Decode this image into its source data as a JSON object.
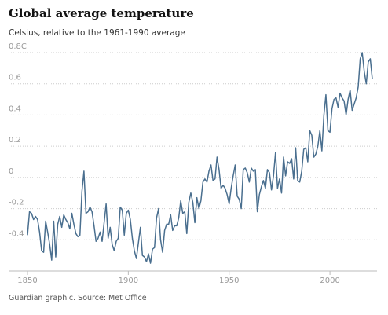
{
  "chart_data": {
    "type": "line",
    "title": "Global average temperature",
    "subtitle": "Celsius, relative to the 1961-1990 average",
    "source": "Guardian graphic. Source: Met Office",
    "x": [
      1850,
      1851,
      1852,
      1853,
      1854,
      1855,
      1856,
      1857,
      1858,
      1859,
      1860,
      1861,
      1862,
      1863,
      1864,
      1865,
      1866,
      1867,
      1868,
      1869,
      1870,
      1871,
      1872,
      1873,
      1874,
      1875,
      1876,
      1877,
      1878,
      1879,
      1880,
      1881,
      1882,
      1883,
      1884,
      1885,
      1886,
      1887,
      1888,
      1889,
      1890,
      1891,
      1892,
      1893,
      1894,
      1895,
      1896,
      1897,
      1898,
      1899,
      1900,
      1901,
      1902,
      1903,
      1904,
      1905,
      1906,
      1907,
      1908,
      1909,
      1910,
      1911,
      1912,
      1913,
      1914,
      1915,
      1916,
      1917,
      1918,
      1919,
      1920,
      1921,
      1922,
      1923,
      1924,
      1925,
      1926,
      1927,
      1928,
      1929,
      1930,
      1931,
      1932,
      1933,
      1934,
      1935,
      1936,
      1937,
      1938,
      1939,
      1940,
      1941,
      1942,
      1943,
      1944,
      1945,
      1946,
      1947,
      1948,
      1949,
      1950,
      1951,
      1952,
      1953,
      1954,
      1955,
      1956,
      1957,
      1958,
      1959,
      1960,
      1961,
      1962,
      1963,
      1964,
      1965,
      1966,
      1967,
      1968,
      1969,
      1970,
      1971,
      1972,
      1973,
      1974,
      1975,
      1976,
      1977,
      1978,
      1979,
      1980,
      1981,
      1982,
      1983,
      1984,
      1985,
      1986,
      1987,
      1988,
      1989,
      1990,
      1991,
      1992,
      1993,
      1994,
      1995,
      1996,
      1997,
      1998,
      1999,
      2000,
      2001,
      2002,
      2003,
      2004,
      2005,
      2006,
      2007,
      2008,
      2009,
      2010,
      2011,
      2012,
      2013,
      2014,
      2015,
      2016,
      2017,
      2018,
      2019,
      2020,
      2021
    ],
    "series": [
      {
        "color": "#4a6f8f",
        "values": [
          -0.37,
          -0.22,
          -0.23,
          -0.27,
          -0.25,
          -0.27,
          -0.35,
          -0.47,
          -0.48,
          -0.28,
          -0.35,
          -0.43,
          -0.53,
          -0.28,
          -0.51,
          -0.3,
          -0.25,
          -0.32,
          -0.24,
          -0.27,
          -0.29,
          -0.33,
          -0.23,
          -0.3,
          -0.36,
          -0.38,
          -0.37,
          -0.09,
          0.04,
          -0.23,
          -0.22,
          -0.19,
          -0.22,
          -0.31,
          -0.41,
          -0.39,
          -0.35,
          -0.41,
          -0.29,
          -0.17,
          -0.39,
          -0.32,
          -0.43,
          -0.47,
          -0.41,
          -0.39,
          -0.19,
          -0.21,
          -0.37,
          -0.23,
          -0.21,
          -0.27,
          -0.39,
          -0.47,
          -0.52,
          -0.42,
          -0.32,
          -0.5,
          -0.51,
          -0.54,
          -0.49,
          -0.55,
          -0.46,
          -0.45,
          -0.26,
          -0.2,
          -0.4,
          -0.48,
          -0.34,
          -0.3,
          -0.3,
          -0.24,
          -0.34,
          -0.31,
          -0.31,
          -0.26,
          -0.15,
          -0.23,
          -0.22,
          -0.36,
          -0.16,
          -0.1,
          -0.16,
          -0.29,
          -0.13,
          -0.2,
          -0.15,
          -0.03,
          -0.01,
          -0.03,
          0.04,
          0.08,
          -0.02,
          -0.01,
          0.13,
          0.05,
          -0.07,
          -0.05,
          -0.07,
          -0.11,
          -0.17,
          -0.07,
          0.01,
          0.08,
          -0.12,
          -0.14,
          -0.2,
          0.05,
          0.06,
          0.03,
          -0.03,
          0.06,
          0.04,
          0.05,
          -0.22,
          -0.11,
          -0.06,
          -0.02,
          -0.07,
          0.05,
          0.03,
          -0.08,
          0.01,
          0.16,
          -0.07,
          -0.01,
          -0.1,
          0.13,
          0.01,
          0.1,
          0.09,
          0.12,
          -0.01,
          0.19,
          -0.02,
          -0.03,
          0.04,
          0.18,
          0.19,
          0.1,
          0.3,
          0.27,
          0.13,
          0.15,
          0.2,
          0.3,
          0.17,
          0.4,
          0.53,
          0.3,
          0.29,
          0.44,
          0.5,
          0.51,
          0.45,
          0.54,
          0.51,
          0.49,
          0.4,
          0.5,
          0.56,
          0.43,
          0.47,
          0.51,
          0.58,
          0.76,
          0.8,
          0.68,
          0.6,
          0.74,
          0.76,
          0.63
        ]
      }
    ],
    "xlim": [
      1850,
      2021
    ],
    "xticks": [
      1850,
      1900,
      1950,
      2000
    ],
    "ylim": [
      -0.6,
      0.8
    ],
    "yticks": [
      {
        "value": 0.8,
        "label": "0.8C"
      },
      0.6,
      0.4,
      0.2,
      0,
      -0.2,
      -0.4
    ],
    "grid": true
  }
}
